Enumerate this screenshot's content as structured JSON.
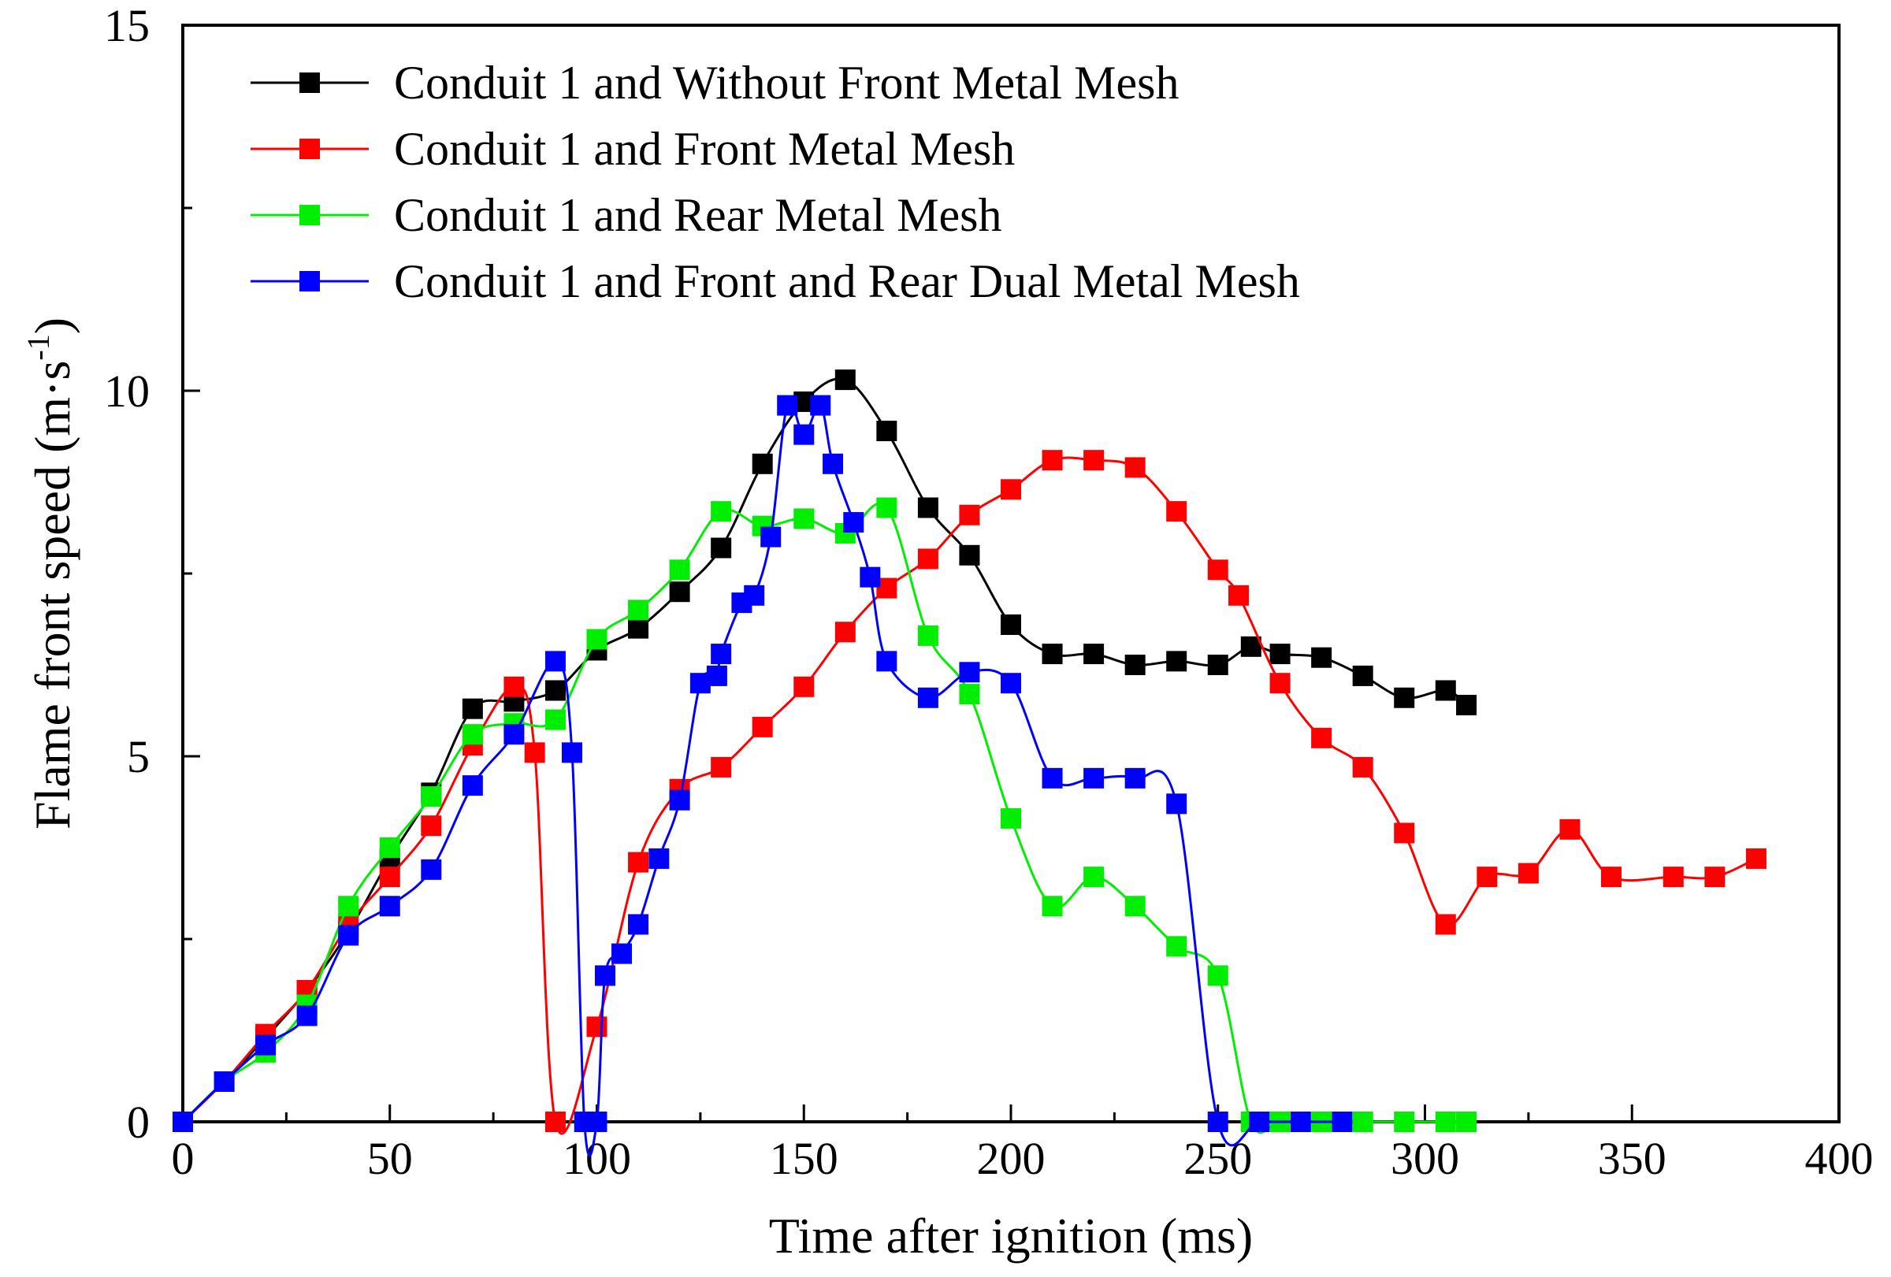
{
  "chart_data": {
    "type": "line",
    "title": "",
    "xlabel": "Time after ignition (ms)",
    "ylabel_main": "Flame front speed (m·s",
    "ylabel_sup": "-1",
    "ylabel_close": ")",
    "xlim": [
      0,
      400
    ],
    "ylim": [
      0,
      15
    ],
    "xticks": [
      0,
      50,
      100,
      150,
      200,
      250,
      300,
      350,
      400
    ],
    "yticks": [
      0,
      5,
      10,
      15
    ],
    "grid": false,
    "legend_position": "top-left",
    "series": [
      {
        "name": "Conduit 1 and Without Front Metal Mesh",
        "color": "#000000",
        "points": [
          [
            0,
            0
          ],
          [
            10,
            0.55
          ],
          [
            20,
            1.15
          ],
          [
            30,
            1.8
          ],
          [
            40,
            2.6
          ],
          [
            50,
            3.6
          ],
          [
            60,
            4.5
          ],
          [
            70,
            5.65
          ],
          [
            80,
            5.75
          ],
          [
            90,
            5.9
          ],
          [
            100,
            6.45
          ],
          [
            110,
            6.75
          ],
          [
            120,
            7.25
          ],
          [
            130,
            7.85
          ],
          [
            140,
            9.0
          ],
          [
            150,
            9.85
          ],
          [
            160,
            10.15
          ],
          [
            170,
            9.45
          ],
          [
            180,
            8.4
          ],
          [
            190,
            7.75
          ],
          [
            200,
            6.8
          ],
          [
            210,
            6.4
          ],
          [
            220,
            6.4
          ],
          [
            230,
            6.25
          ],
          [
            240,
            6.3
          ],
          [
            250,
            6.25
          ],
          [
            258,
            6.5
          ],
          [
            265,
            6.4
          ],
          [
            275,
            6.35
          ],
          [
            285,
            6.1
          ],
          [
            295,
            5.8
          ],
          [
            305,
            5.9
          ],
          [
            310,
            5.7
          ]
        ]
      },
      {
        "name": "Conduit 1 and Front Metal Mesh",
        "color": "#ff0000",
        "points": [
          [
            0,
            0
          ],
          [
            10,
            0.55
          ],
          [
            20,
            1.2
          ],
          [
            30,
            1.8
          ],
          [
            40,
            2.7
          ],
          [
            50,
            3.35
          ],
          [
            60,
            4.05
          ],
          [
            70,
            5.15
          ],
          [
            80,
            5.95
          ],
          [
            85,
            5.05
          ],
          [
            90,
            0
          ],
          [
            100,
            1.3
          ],
          [
            110,
            3.55
          ],
          [
            120,
            4.55
          ],
          [
            130,
            4.85
          ],
          [
            140,
            5.4
          ],
          [
            150,
            5.95
          ],
          [
            160,
            6.7
          ],
          [
            170,
            7.3
          ],
          [
            180,
            7.7
          ],
          [
            190,
            8.3
          ],
          [
            200,
            8.65
          ],
          [
            210,
            9.05
          ],
          [
            220,
            9.05
          ],
          [
            230,
            8.95
          ],
          [
            240,
            8.35
          ],
          [
            250,
            7.55
          ],
          [
            255,
            7.2
          ],
          [
            265,
            6.0
          ],
          [
            275,
            5.25
          ],
          [
            285,
            4.85
          ],
          [
            295,
            3.95
          ],
          [
            305,
            2.7
          ],
          [
            315,
            3.35
          ],
          [
            325,
            3.4
          ],
          [
            335,
            4.0
          ],
          [
            345,
            3.35
          ],
          [
            360,
            3.35
          ],
          [
            370,
            3.35
          ],
          [
            380,
            3.6
          ]
        ]
      },
      {
        "name": "Conduit 1 and Rear Metal Mesh",
        "color": "#00ee00",
        "points": [
          [
            0,
            0
          ],
          [
            10,
            0.55
          ],
          [
            20,
            0.95
          ],
          [
            30,
            1.6
          ],
          [
            40,
            2.95
          ],
          [
            50,
            3.75
          ],
          [
            60,
            4.45
          ],
          [
            70,
            5.3
          ],
          [
            80,
            5.45
          ],
          [
            90,
            5.5
          ],
          [
            100,
            6.6
          ],
          [
            110,
            7.0
          ],
          [
            120,
            7.55
          ],
          [
            130,
            8.35
          ],
          [
            140,
            8.15
          ],
          [
            150,
            8.25
          ],
          [
            160,
            8.05
          ],
          [
            170,
            8.4
          ],
          [
            180,
            6.65
          ],
          [
            190,
            5.85
          ],
          [
            200,
            4.15
          ],
          [
            210,
            2.95
          ],
          [
            220,
            3.35
          ],
          [
            230,
            2.95
          ],
          [
            240,
            2.4
          ],
          [
            250,
            2.0
          ],
          [
            258,
            0
          ],
          [
            265,
            0
          ],
          [
            275,
            0
          ],
          [
            285,
            0
          ],
          [
            295,
            0
          ],
          [
            305,
            0
          ],
          [
            310,
            0
          ]
        ]
      },
      {
        "name": "Conduit 1 and Front and Rear Dual Metal Mesh",
        "color": "#0000ff",
        "points": [
          [
            0,
            0
          ],
          [
            10,
            0.55
          ],
          [
            20,
            1.05
          ],
          [
            30,
            1.45
          ],
          [
            40,
            2.55
          ],
          [
            50,
            2.95
          ],
          [
            60,
            3.45
          ],
          [
            70,
            4.6
          ],
          [
            80,
            5.3
          ],
          [
            90,
            6.3
          ],
          [
            94,
            5.05
          ],
          [
            97,
            0
          ],
          [
            100,
            0
          ],
          [
            102,
            2.0
          ],
          [
            106,
            2.3
          ],
          [
            110,
            2.7
          ],
          [
            115,
            3.6
          ],
          [
            120,
            4.4
          ],
          [
            125,
            6.0
          ],
          [
            129,
            6.1
          ],
          [
            130,
            6.4
          ],
          [
            135,
            7.1
          ],
          [
            138,
            7.2
          ],
          [
            142,
            8.0
          ],
          [
            146,
            9.8
          ],
          [
            150,
            9.4
          ],
          [
            154,
            9.8
          ],
          [
            157,
            9.0
          ],
          [
            162,
            8.2
          ],
          [
            166,
            7.45
          ],
          [
            170,
            6.3
          ],
          [
            180,
            5.8
          ],
          [
            190,
            6.15
          ],
          [
            200,
            6.0
          ],
          [
            210,
            4.7
          ],
          [
            220,
            4.7
          ],
          [
            230,
            4.7
          ],
          [
            240,
            4.35
          ],
          [
            250,
            0
          ],
          [
            260,
            0
          ],
          [
            270,
            0
          ],
          [
            280,
            0
          ]
        ]
      }
    ]
  }
}
